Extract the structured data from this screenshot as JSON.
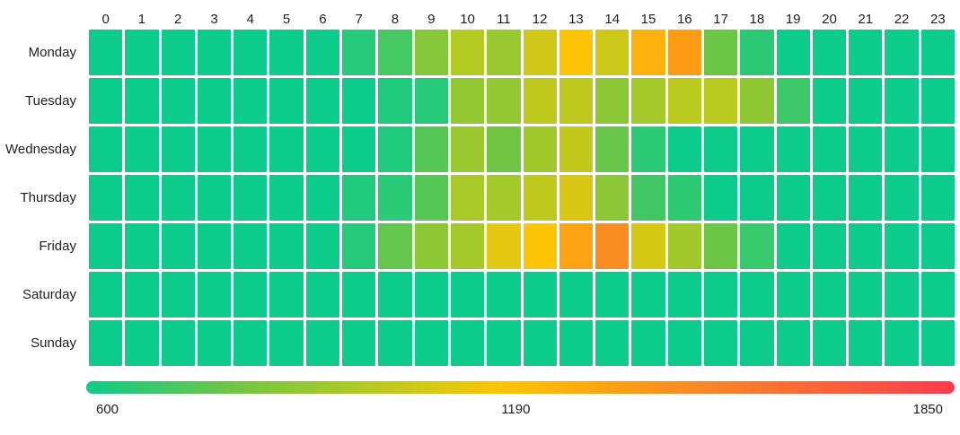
{
  "chart_data": {
    "type": "heatmap",
    "title": "",
    "xlabel": "",
    "ylabel": "",
    "x_labels": [
      "0",
      "1",
      "2",
      "3",
      "4",
      "5",
      "6",
      "7",
      "8",
      "9",
      "10",
      "11",
      "12",
      "13",
      "14",
      "15",
      "16",
      "17",
      "18",
      "19",
      "20",
      "21",
      "22",
      "23"
    ],
    "y_labels": [
      "Monday",
      "Tuesday",
      "Wednesday",
      "Thursday",
      "Friday",
      "Saturday",
      "Sunday"
    ],
    "series": [
      {
        "name": "Monday",
        "values": [
          600,
          600,
          600,
          600,
          600,
          600,
          600,
          650,
          720,
          870,
          1000,
          930,
          1075,
          1200,
          1065,
          1290,
          1380,
          800,
          665,
          600,
          600,
          600,
          600,
          600
        ]
      },
      {
        "name": "Tuesday",
        "values": [
          600,
          600,
          600,
          600,
          600,
          600,
          600,
          600,
          640,
          655,
          910,
          910,
          1030,
          1030,
          890,
          960,
          1020,
          1020,
          900,
          700,
          600,
          600,
          600,
          600
        ]
      },
      {
        "name": "Wednesday",
        "values": [
          600,
          600,
          600,
          600,
          600,
          600,
          600,
          600,
          640,
          750,
          930,
          810,
          950,
          1040,
          790,
          660,
          600,
          600,
          600,
          600,
          600,
          600,
          600,
          600
        ]
      },
      {
        "name": "Thursday",
        "values": [
          600,
          600,
          600,
          600,
          600,
          600,
          600,
          640,
          660,
          750,
          970,
          955,
          1030,
          1100,
          890,
          710,
          670,
          600,
          600,
          600,
          600,
          600,
          600,
          600
        ]
      },
      {
        "name": "Friday",
        "values": [
          600,
          600,
          600,
          600,
          600,
          600,
          600,
          650,
          780,
          890,
          955,
          1130,
          1200,
          1350,
          1460,
          1090,
          950,
          800,
          690,
          600,
          600,
          600,
          600,
          600
        ]
      },
      {
        "name": "Saturday",
        "values": [
          600,
          600,
          600,
          600,
          600,
          600,
          600,
          600,
          600,
          600,
          600,
          600,
          600,
          600,
          600,
          600,
          600,
          600,
          600,
          600,
          600,
          600,
          600,
          600
        ]
      },
      {
        "name": "Sunday",
        "values": [
          600,
          600,
          600,
          600,
          600,
          600,
          600,
          600,
          600,
          600,
          600,
          600,
          600,
          600,
          600,
          600,
          600,
          600,
          600,
          600,
          600,
          600,
          600,
          600
        ]
      }
    ],
    "scale": {
      "min": 600,
      "max": 1850,
      "stops": [
        {
          "value": 600,
          "color": "#0DCB8B"
        },
        {
          "value": 800,
          "color": "#6CC646"
        },
        {
          "value": 1000,
          "color": "#B3CA22"
        },
        {
          "value": 1200,
          "color": "#FDC506"
        },
        {
          "value": 1380,
          "color": "#FB9C14"
        },
        {
          "value": 1500,
          "color": "#FA8528"
        },
        {
          "value": 1850,
          "color": "#FB3B4E"
        }
      ]
    },
    "legend": {
      "min_label": "600",
      "mid_label": "1190",
      "max_label": "1850",
      "position": "bottom"
    },
    "layout": {
      "grid": "off",
      "cell_gap_color": "#FFFFFF"
    }
  }
}
